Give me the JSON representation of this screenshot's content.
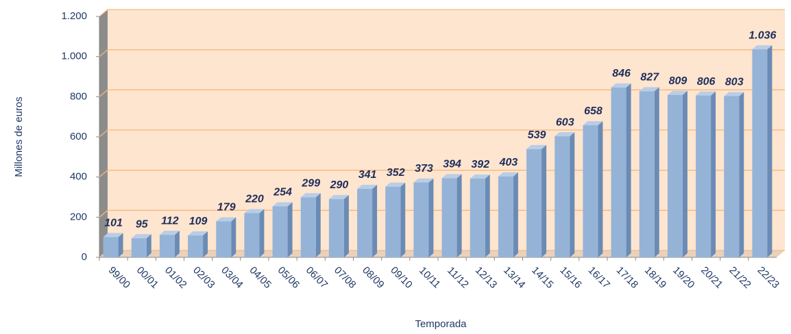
{
  "chart_data": {
    "type": "bar",
    "y_label": "Millones de euros",
    "x_label": "Temporada",
    "categories": [
      "99/00",
      "00/01",
      "01/02",
      "02/03",
      "03/04",
      "04/05",
      "05/06",
      "06/07",
      "07/08",
      "08/09",
      "09/10",
      "10/11",
      "11/12",
      "12/13",
      "13/14",
      "14/15",
      "15/16",
      "16/17",
      "17/18",
      "18/19",
      "19/20",
      "20/21",
      "21/22",
      "22/23"
    ],
    "values": [
      101,
      95,
      112,
      109,
      179,
      220,
      254,
      299,
      290,
      341,
      352,
      373,
      394,
      392,
      403,
      539,
      603,
      658,
      846,
      827,
      809,
      806,
      803,
      1036
    ],
    "value_labels": [
      "101",
      "95",
      "112",
      "109",
      "179",
      "220",
      "254",
      "299",
      "290",
      "341",
      "352",
      "373",
      "394",
      "392",
      "403",
      "539",
      "603",
      "658",
      "846",
      "827",
      "809",
      "806",
      "803",
      "1.036"
    ],
    "color": "#95b3d7",
    "ylim": [
      0,
      1200
    ],
    "yticks": [
      0,
      200,
      400,
      600,
      800,
      {
        "value": 1000,
        "label": "1.000"
      },
      {
        "value": 1200,
        "label": "1.200"
      }
    ],
    "grid": true
  }
}
